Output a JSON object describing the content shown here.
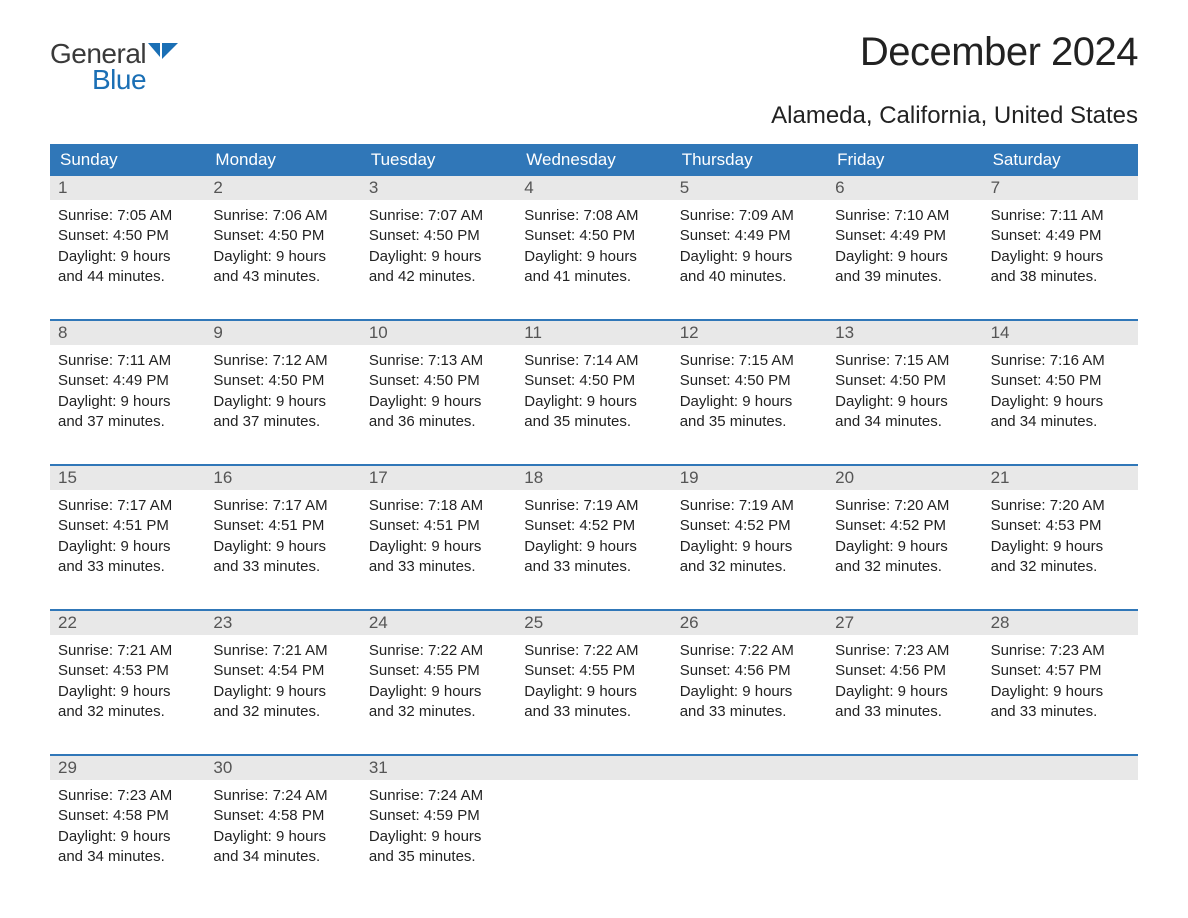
{
  "logo": {
    "text1": "General",
    "text2": "Blue",
    "mark_color": "#1a6fb5"
  },
  "title": "December 2024",
  "location": "Alameda, California, United States",
  "header_bg": "#3077b8",
  "header_fg": "#ffffff",
  "num_bg": "#e8e8e8",
  "border_color": "#3077b8",
  "body_color": "#222222",
  "page_bg": "#ffffff",
  "title_fontsize": 40,
  "location_fontsize": 24,
  "header_fontsize": 17,
  "body_fontsize": 15,
  "day_names": [
    "Sunday",
    "Monday",
    "Tuesday",
    "Wednesday",
    "Thursday",
    "Friday",
    "Saturday"
  ],
  "weeks": [
    [
      {
        "n": "1",
        "sr": "7:05 AM",
        "ss": "4:50 PM",
        "dl": "9 hours and 44 minutes."
      },
      {
        "n": "2",
        "sr": "7:06 AM",
        "ss": "4:50 PM",
        "dl": "9 hours and 43 minutes."
      },
      {
        "n": "3",
        "sr": "7:07 AM",
        "ss": "4:50 PM",
        "dl": "9 hours and 42 minutes."
      },
      {
        "n": "4",
        "sr": "7:08 AM",
        "ss": "4:50 PM",
        "dl": "9 hours and 41 minutes."
      },
      {
        "n": "5",
        "sr": "7:09 AM",
        "ss": "4:49 PM",
        "dl": "9 hours and 40 minutes."
      },
      {
        "n": "6",
        "sr": "7:10 AM",
        "ss": "4:49 PM",
        "dl": "9 hours and 39 minutes."
      },
      {
        "n": "7",
        "sr": "7:11 AM",
        "ss": "4:49 PM",
        "dl": "9 hours and 38 minutes."
      }
    ],
    [
      {
        "n": "8",
        "sr": "7:11 AM",
        "ss": "4:49 PM",
        "dl": "9 hours and 37 minutes."
      },
      {
        "n": "9",
        "sr": "7:12 AM",
        "ss": "4:50 PM",
        "dl": "9 hours and 37 minutes."
      },
      {
        "n": "10",
        "sr": "7:13 AM",
        "ss": "4:50 PM",
        "dl": "9 hours and 36 minutes."
      },
      {
        "n": "11",
        "sr": "7:14 AM",
        "ss": "4:50 PM",
        "dl": "9 hours and 35 minutes."
      },
      {
        "n": "12",
        "sr": "7:15 AM",
        "ss": "4:50 PM",
        "dl": "9 hours and 35 minutes."
      },
      {
        "n": "13",
        "sr": "7:15 AM",
        "ss": "4:50 PM",
        "dl": "9 hours and 34 minutes."
      },
      {
        "n": "14",
        "sr": "7:16 AM",
        "ss": "4:50 PM",
        "dl": "9 hours and 34 minutes."
      }
    ],
    [
      {
        "n": "15",
        "sr": "7:17 AM",
        "ss": "4:51 PM",
        "dl": "9 hours and 33 minutes."
      },
      {
        "n": "16",
        "sr": "7:17 AM",
        "ss": "4:51 PM",
        "dl": "9 hours and 33 minutes."
      },
      {
        "n": "17",
        "sr": "7:18 AM",
        "ss": "4:51 PM",
        "dl": "9 hours and 33 minutes."
      },
      {
        "n": "18",
        "sr": "7:19 AM",
        "ss": "4:52 PM",
        "dl": "9 hours and 33 minutes."
      },
      {
        "n": "19",
        "sr": "7:19 AM",
        "ss": "4:52 PM",
        "dl": "9 hours and 32 minutes."
      },
      {
        "n": "20",
        "sr": "7:20 AM",
        "ss": "4:52 PM",
        "dl": "9 hours and 32 minutes."
      },
      {
        "n": "21",
        "sr": "7:20 AM",
        "ss": "4:53 PM",
        "dl": "9 hours and 32 minutes."
      }
    ],
    [
      {
        "n": "22",
        "sr": "7:21 AM",
        "ss": "4:53 PM",
        "dl": "9 hours and 32 minutes."
      },
      {
        "n": "23",
        "sr": "7:21 AM",
        "ss": "4:54 PM",
        "dl": "9 hours and 32 minutes."
      },
      {
        "n": "24",
        "sr": "7:22 AM",
        "ss": "4:55 PM",
        "dl": "9 hours and 32 minutes."
      },
      {
        "n": "25",
        "sr": "7:22 AM",
        "ss": "4:55 PM",
        "dl": "9 hours and 33 minutes."
      },
      {
        "n": "26",
        "sr": "7:22 AM",
        "ss": "4:56 PM",
        "dl": "9 hours and 33 minutes."
      },
      {
        "n": "27",
        "sr": "7:23 AM",
        "ss": "4:56 PM",
        "dl": "9 hours and 33 minutes."
      },
      {
        "n": "28",
        "sr": "7:23 AM",
        "ss": "4:57 PM",
        "dl": "9 hours and 33 minutes."
      }
    ],
    [
      {
        "n": "29",
        "sr": "7:23 AM",
        "ss": "4:58 PM",
        "dl": "9 hours and 34 minutes."
      },
      {
        "n": "30",
        "sr": "7:24 AM",
        "ss": "4:58 PM",
        "dl": "9 hours and 34 minutes."
      },
      {
        "n": "31",
        "sr": "7:24 AM",
        "ss": "4:59 PM",
        "dl": "9 hours and 35 minutes."
      },
      null,
      null,
      null,
      null
    ]
  ],
  "labels": {
    "sunrise": "Sunrise: ",
    "sunset": "Sunset: ",
    "daylight": "Daylight: "
  }
}
